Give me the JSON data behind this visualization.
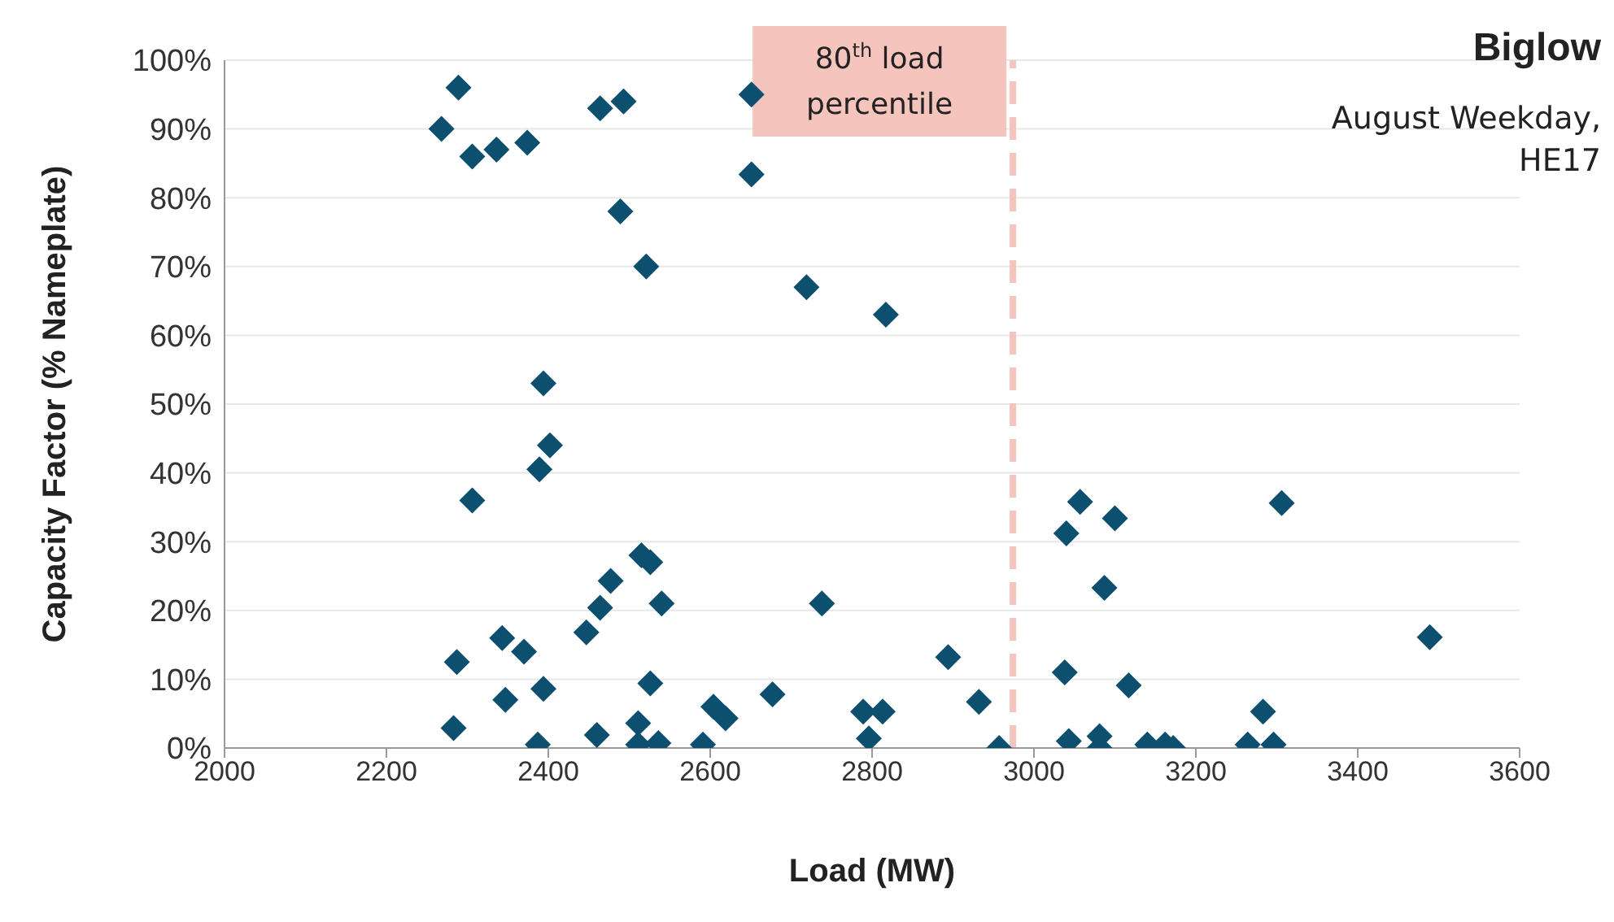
{
  "chart_data": {
    "type": "scatter",
    "title": "Biglow",
    "subtitle": "August Weekday, HE17",
    "xlabel": "Load (MW)",
    "ylabel": "Capacity Factor (% Nameplate)",
    "x": [
      2268,
      2289,
      2306,
      2336,
      2374,
      2464,
      2493,
      2489,
      2521,
      2651,
      2651,
      2719,
      2817,
      2394,
      2402,
      2389,
      2306,
      2515,
      2526,
      2477,
      2464,
      2540,
      2447,
      2343,
      2370,
      2287,
      2738,
      2894,
      2932,
      2957,
      2526,
      2394,
      2347,
      2283,
      2387,
      2460,
      2511,
      2511,
      2536,
      2591,
      2604,
      2619,
      2677,
      2789,
      2813,
      2796,
      3057,
      3040,
      3100,
      3087,
      3038,
      3117,
      3043,
      3081,
      3081,
      3140,
      3162,
      3172,
      3264,
      3296,
      3283,
      3306,
      3489
    ],
    "series": [
      {
        "color": "#0d4f6e",
        "values": [
          90,
          96,
          86,
          87,
          88,
          93,
          94,
          78,
          70,
          95,
          83.4,
          67,
          63,
          53,
          44,
          40.5,
          36,
          28,
          27,
          24.3,
          20.4,
          21,
          16.8,
          16,
          14,
          12.5,
          21,
          13.2,
          6.7,
          0,
          9.4,
          8.6,
          7,
          2.9,
          0.5,
          1.9,
          3.6,
          0.5,
          0.7,
          0.5,
          6,
          4.3,
          7.8,
          5.3,
          5.3,
          1.4,
          35.8,
          31.2,
          33.4,
          23.3,
          11,
          9.1,
          1,
          1.7,
          0,
          0.5,
          0.5,
          0,
          0.5,
          0.5,
          5.3,
          35.6,
          16.1
        ]
      }
    ],
    "xlim": [
      2000,
      3600
    ],
    "xticks": [
      2000,
      2200,
      2400,
      2600,
      2800,
      3000,
      3200,
      3400,
      3600
    ],
    "ylim": [
      0,
      100
    ],
    "yticks": [
      {
        "value": 0,
        "label": "0%"
      },
      {
        "value": 10,
        "label": "10%"
      },
      {
        "value": 20,
        "label": "20%"
      },
      {
        "value": 30,
        "label": "30%"
      },
      {
        "value": 40,
        "label": "40%"
      },
      {
        "value": 50,
        "label": "50%"
      },
      {
        "value": 60,
        "label": "60%"
      },
      {
        "value": 70,
        "label": "70%"
      },
      {
        "value": 80,
        "label": "80%"
      },
      {
        "value": 90,
        "label": "90%"
      },
      {
        "value": 100,
        "label": "100%"
      }
    ],
    "grid": "y",
    "marker": "diamond",
    "ref_lines": [
      {
        "axis": "x",
        "value": 2974,
        "label": "80$^{th}$ load percentile",
        "color": "#f5c4bd",
        "line_style": "dashed"
      }
    ]
  }
}
